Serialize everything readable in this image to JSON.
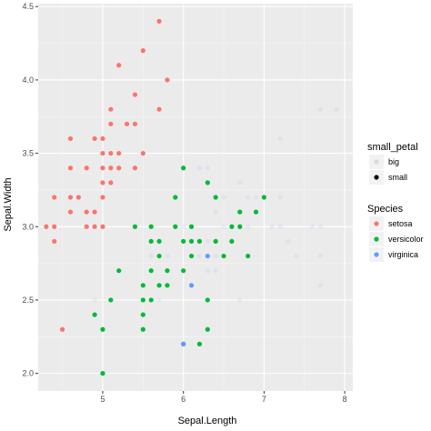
{
  "chart_data": {
    "type": "scatter",
    "xlabel": "Sepal.Length",
    "ylabel": "Sepal.Width",
    "xlim": [
      4.2,
      8.1
    ],
    "ylim": [
      1.88,
      4.52
    ],
    "x_ticks": [
      5,
      6,
      7,
      8
    ],
    "x_tick_labels": [
      "5",
      "6",
      "7",
      "8"
    ],
    "y_ticks": [
      2.0,
      2.5,
      3.0,
      3.5,
      4.0,
      4.5
    ],
    "y_tick_labels": [
      "2.0",
      "2.5",
      "3.0",
      "3.5",
      "4.0",
      "4.5"
    ],
    "grid": true,
    "legend_position": "right",
    "colors": {
      "setosa": "#F8766D",
      "versicolor": "#00BA38",
      "virginica": "#619CFF",
      "panel": "#EBEBEB",
      "grid_major": "#FFFFFF",
      "grid_minor": "#F5F5F5"
    },
    "legends": [
      {
        "title": "small_petal",
        "encoding": "alpha",
        "items": [
          {
            "label": "big",
            "alpha": 0.1
          },
          {
            "label": "small",
            "alpha": 1.0
          }
        ]
      },
      {
        "title": "Species",
        "encoding": "color",
        "items": [
          {
            "label": "setosa",
            "color": "#F8766D"
          },
          {
            "label": "versicolor",
            "color": "#00BA38"
          },
          {
            "label": "virginica",
            "color": "#619CFF"
          }
        ]
      }
    ],
    "series": [
      {
        "name": "setosa",
        "small_petal": "small",
        "points": [
          [
            4.3,
            3.0
          ],
          [
            4.4,
            2.9
          ],
          [
            4.4,
            3.0
          ],
          [
            4.4,
            3.2
          ],
          [
            4.5,
            2.3
          ],
          [
            4.6,
            3.1
          ],
          [
            4.6,
            3.2
          ],
          [
            4.6,
            3.4
          ],
          [
            4.6,
            3.6
          ],
          [
            4.7,
            3.2
          ],
          [
            4.8,
            3.0
          ],
          [
            4.8,
            3.1
          ],
          [
            4.8,
            3.4
          ],
          [
            4.9,
            3.0
          ],
          [
            4.9,
            3.1
          ],
          [
            4.9,
            3.6
          ],
          [
            5.0,
            3.0
          ],
          [
            5.0,
            3.2
          ],
          [
            5.0,
            3.3
          ],
          [
            5.0,
            3.4
          ],
          [
            5.0,
            3.5
          ],
          [
            5.0,
            3.6
          ],
          [
            5.1,
            3.3
          ],
          [
            5.1,
            3.4
          ],
          [
            5.1,
            3.5
          ],
          [
            5.1,
            3.7
          ],
          [
            5.1,
            3.8
          ],
          [
            5.2,
            3.4
          ],
          [
            5.2,
            3.5
          ],
          [
            5.2,
            4.1
          ],
          [
            5.3,
            3.7
          ],
          [
            5.4,
            3.4
          ],
          [
            5.4,
            3.7
          ],
          [
            5.4,
            3.9
          ],
          [
            5.5,
            3.5
          ],
          [
            5.5,
            4.2
          ],
          [
            5.7,
            3.8
          ],
          [
            5.7,
            4.4
          ],
          [
            5.8,
            4.0
          ]
        ]
      },
      {
        "name": "versicolor",
        "small_petal": "small",
        "points": [
          [
            4.9,
            2.4
          ],
          [
            5.0,
            2.0
          ],
          [
            5.0,
            2.3
          ],
          [
            5.1,
            2.5
          ],
          [
            5.2,
            2.7
          ],
          [
            5.4,
            3.0
          ],
          [
            5.5,
            2.3
          ],
          [
            5.5,
            2.4
          ],
          [
            5.5,
            2.5
          ],
          [
            5.5,
            2.6
          ],
          [
            5.6,
            2.5
          ],
          [
            5.6,
            2.7
          ],
          [
            5.6,
            2.9
          ],
          [
            5.6,
            3.0
          ],
          [
            5.7,
            2.6
          ],
          [
            5.7,
            2.8
          ],
          [
            5.7,
            2.9
          ],
          [
            5.8,
            2.6
          ],
          [
            5.8,
            2.7
          ],
          [
            5.9,
            3.0
          ],
          [
            5.9,
            3.2
          ],
          [
            6.0,
            2.2
          ],
          [
            6.0,
            2.7
          ],
          [
            6.0,
            2.9
          ],
          [
            6.0,
            3.4
          ],
          [
            6.1,
            2.8
          ],
          [
            6.1,
            2.9
          ],
          [
            6.1,
            3.0
          ],
          [
            6.2,
            2.2
          ],
          [
            6.2,
            2.9
          ],
          [
            6.3,
            2.3
          ],
          [
            6.3,
            2.5
          ],
          [
            6.3,
            3.3
          ],
          [
            6.4,
            2.9
          ],
          [
            6.4,
            3.2
          ],
          [
            6.5,
            2.8
          ],
          [
            6.6,
            2.9
          ],
          [
            6.6,
            3.0
          ],
          [
            6.7,
            3.0
          ],
          [
            6.7,
            3.1
          ],
          [
            6.8,
            2.8
          ],
          [
            6.9,
            3.1
          ],
          [
            7.0,
            3.2
          ]
        ]
      },
      {
        "name": "virginica",
        "small_petal": "small",
        "points": [
          [
            6.0,
            2.2
          ],
          [
            6.1,
            2.6
          ],
          [
            6.3,
            2.8
          ]
        ]
      },
      {
        "name": "virginica",
        "small_petal": "big",
        "points": [
          [
            4.9,
            2.5
          ],
          [
            5.6,
            2.8
          ],
          [
            5.7,
            2.5
          ],
          [
            5.8,
            2.7
          ],
          [
            5.8,
            2.8
          ],
          [
            5.9,
            3.0
          ],
          [
            6.0,
            2.2
          ],
          [
            6.0,
            3.0
          ],
          [
            6.1,
            2.6
          ],
          [
            6.1,
            3.0
          ],
          [
            6.2,
            2.8
          ],
          [
            6.2,
            3.4
          ],
          [
            6.3,
            2.5
          ],
          [
            6.3,
            2.7
          ],
          [
            6.3,
            2.9
          ],
          [
            6.3,
            3.3
          ],
          [
            6.3,
            3.4
          ],
          [
            6.4,
            2.7
          ],
          [
            6.4,
            2.8
          ],
          [
            6.4,
            3.1
          ],
          [
            6.4,
            3.2
          ],
          [
            6.5,
            3.0
          ],
          [
            6.5,
            3.2
          ],
          [
            6.7,
            2.5
          ],
          [
            6.7,
            3.0
          ],
          [
            6.7,
            3.1
          ],
          [
            6.7,
            3.3
          ],
          [
            6.8,
            3.0
          ],
          [
            6.8,
            3.2
          ],
          [
            6.9,
            3.1
          ],
          [
            6.9,
            3.2
          ],
          [
            7.1,
            3.0
          ],
          [
            7.2,
            3.0
          ],
          [
            7.2,
            3.2
          ],
          [
            7.2,
            3.6
          ],
          [
            7.3,
            2.9
          ],
          [
            7.4,
            2.8
          ],
          [
            7.6,
            3.0
          ],
          [
            7.7,
            2.6
          ],
          [
            7.7,
            2.8
          ],
          [
            7.7,
            3.0
          ],
          [
            7.7,
            3.8
          ],
          [
            7.9,
            3.8
          ]
        ]
      },
      {
        "name": "versicolor",
        "small_petal": "big",
        "points": [
          [
            6.0,
            3.4
          ],
          [
            6.2,
            2.9
          ],
          [
            6.3,
            3.3
          ],
          [
            6.7,
            3.0
          ]
        ]
      }
    ]
  }
}
